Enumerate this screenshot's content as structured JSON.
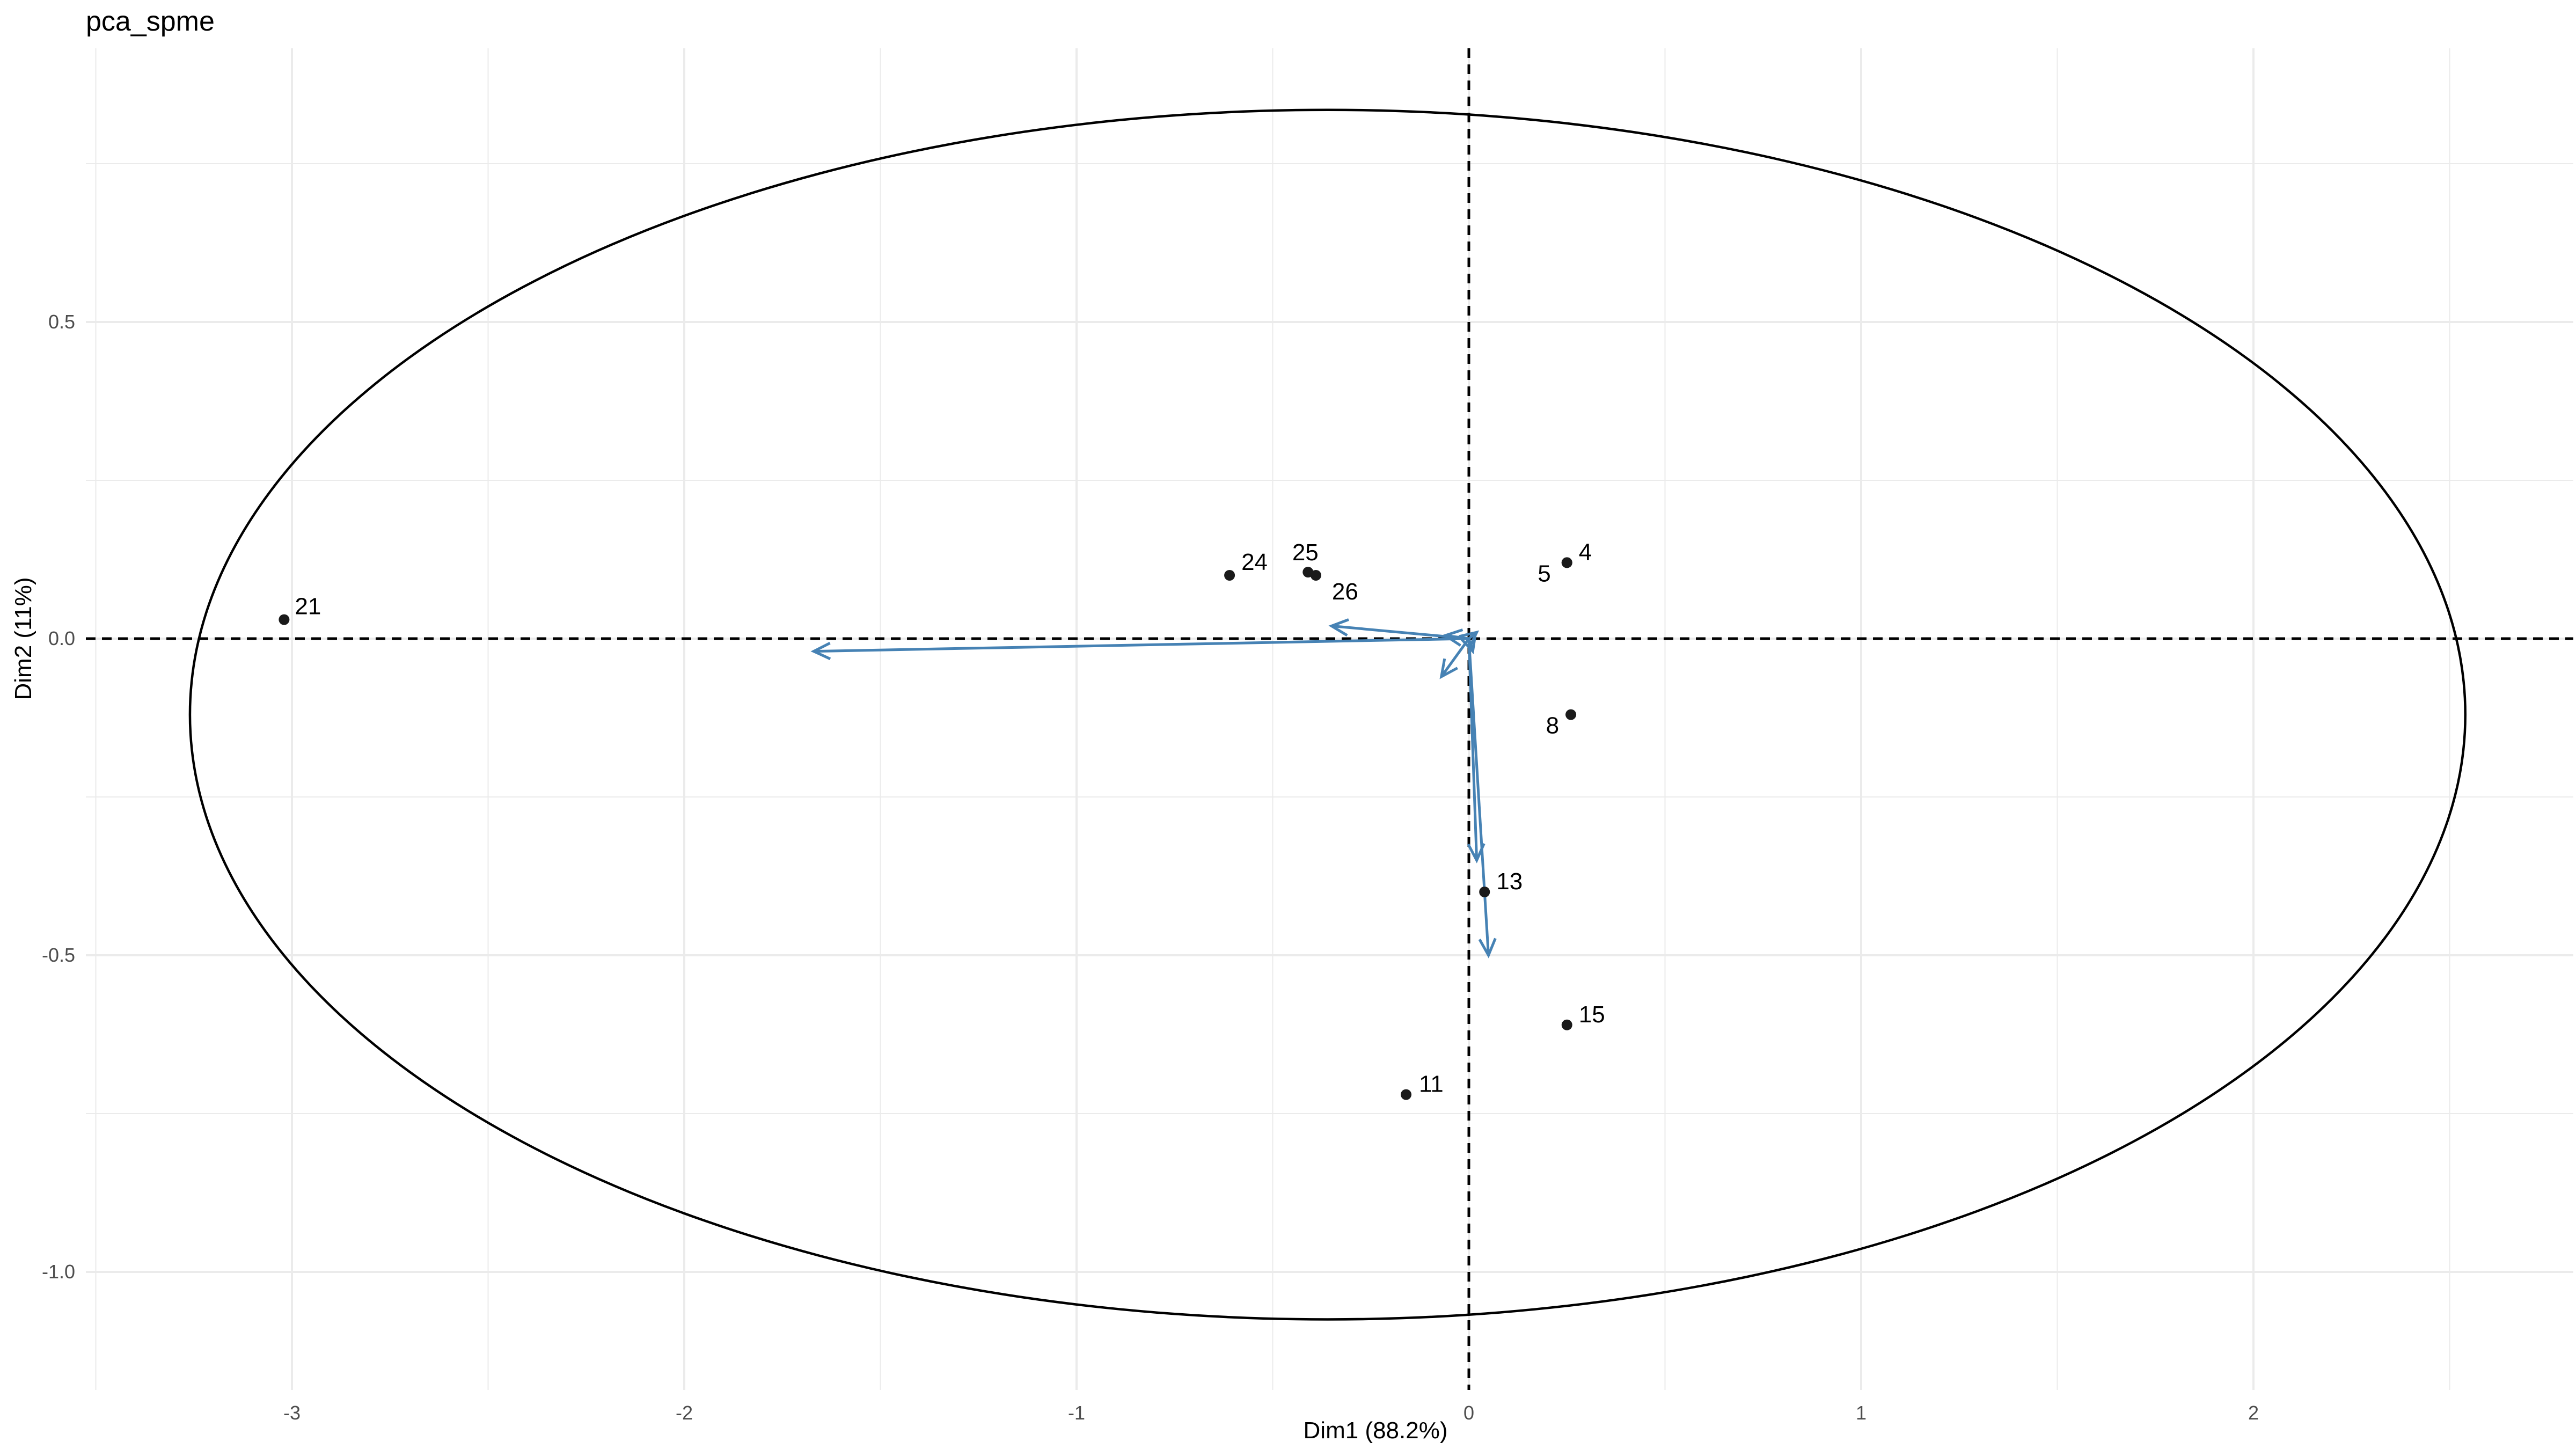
{
  "chart_data": {
    "type": "scatter",
    "title": "pca_spme",
    "xlabel": "Dim1 (88.2%)",
    "ylabel": "Dim2 (11%)",
    "xlim": [
      -3.5,
      2.8
    ],
    "ylim": [
      -1.16,
      0.93
    ],
    "x_ticks": [
      -3,
      -2,
      -1,
      0,
      1,
      2
    ],
    "x_tick_labels": [
      "-3",
      "-2",
      "-1",
      "0",
      "1",
      "2"
    ],
    "y_ticks": [
      0.5,
      0.0,
      -0.5,
      -1.0
    ],
    "y_tick_labels": [
      "0.5",
      "0.0",
      "-0.5",
      "-1.0"
    ],
    "grid": true,
    "reference_lines": {
      "x": 0,
      "y": 0,
      "style": "dashed"
    },
    "points": [
      {
        "label": "21",
        "x": -3.02,
        "y": 0.03
      },
      {
        "label": "24",
        "x": -0.61,
        "y": 0.1
      },
      {
        "label": "25",
        "x": -0.41,
        "y": 0.105
      },
      {
        "label": "26",
        "x": -0.39,
        "y": 0.1
      },
      {
        "label": "4",
        "x": 0.25,
        "y": 0.12
      },
      {
        "label": "5",
        "x": 0.25,
        "y": 0.12
      },
      {
        "label": "8",
        "x": 0.26,
        "y": -0.12
      },
      {
        "label": "13",
        "x": 0.04,
        "y": -0.4
      },
      {
        "label": "15",
        "x": 0.25,
        "y": -0.61
      },
      {
        "label": "11",
        "x": -0.16,
        "y": -0.72
      }
    ],
    "arrows": [
      {
        "x": -1.67,
        "y": -0.02
      },
      {
        "x": -0.35,
        "y": 0.02
      },
      {
        "x": -0.07,
        "y": -0.06
      },
      {
        "x": 0.02,
        "y": -0.35
      },
      {
        "x": 0.05,
        "y": -0.5
      },
      {
        "x": -0.06,
        "y": 0.005
      },
      {
        "x": 0.02,
        "y": 0.01
      },
      {
        "x": 0.01,
        "y": -0.02
      }
    ],
    "ellipse": {
      "center": [
        -0.36,
        -0.12
      ],
      "semi_x": 2.9,
      "semi_y": 0.955,
      "color": "#000000"
    },
    "colors": {
      "points": "#1a1a1a",
      "arrows": "#4682b4",
      "grid": "#ebebeb",
      "ellipse": "#000000"
    }
  }
}
